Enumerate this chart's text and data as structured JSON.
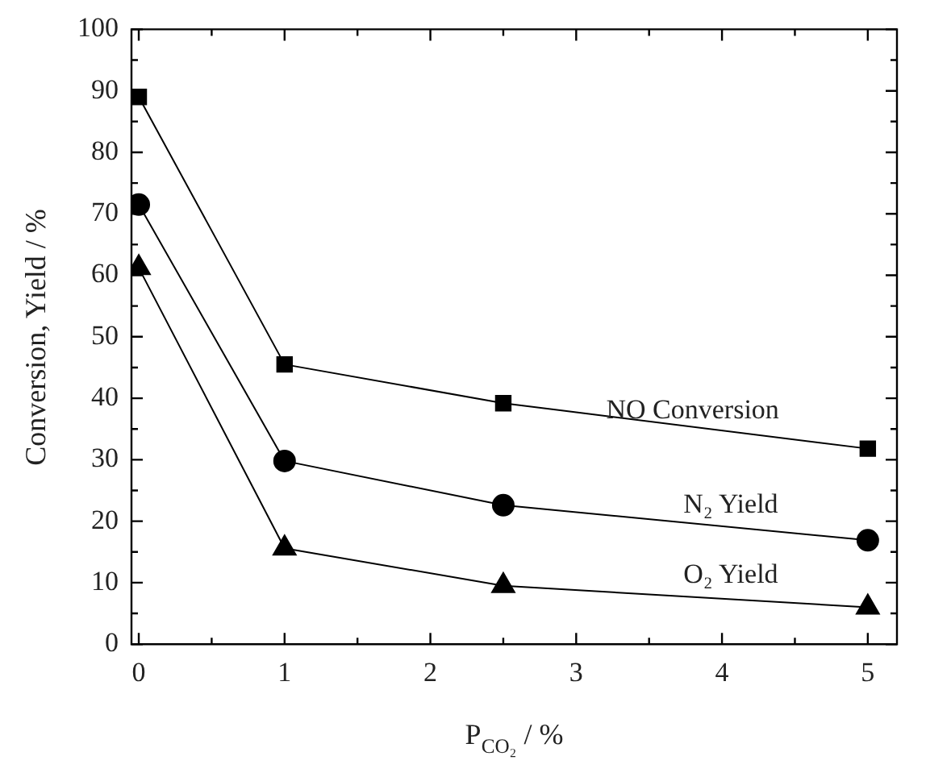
{
  "chart_data": {
    "type": "line",
    "xlabel": "P$_{CO₂}$ / %",
    "ylabel": "Conversion, Yield / %",
    "x": [
      0,
      1,
      2.5,
      5
    ],
    "series": [
      {
        "name": "NO Conversion",
        "color": "#000000",
        "marker": "square",
        "values": [
          89,
          45.5,
          39.2,
          31.8
        ]
      },
      {
        "name": "N₂ Yield",
        "color": "#000000",
        "marker": "circle",
        "values": [
          71.5,
          29.8,
          22.6,
          16.9
        ]
      },
      {
        "name": "O₂ Yield",
        "color": "#000000",
        "marker": "triangle",
        "values": [
          61.2,
          15.6,
          9.5,
          6
        ]
      }
    ],
    "xlim": [
      -0.05,
      5.2
    ],
    "xticks": [
      0,
      {
        "value": 0.5,
        "label": null
      },
      1,
      {
        "value": 1.5,
        "label": null
      },
      2,
      {
        "value": 2.5,
        "label": null
      },
      3,
      {
        "value": 3.5,
        "label": null
      },
      4,
      {
        "value": 4.5,
        "label": null
      },
      5
    ],
    "ylim": [
      0,
      100
    ],
    "yticks": [
      0,
      {
        "value": 5,
        "label": null
      },
      10,
      {
        "value": 15,
        "label": null
      },
      20,
      {
        "value": 25,
        "label": null
      },
      30,
      {
        "value": 35,
        "label": null
      },
      40,
      {
        "value": 45,
        "label": null
      },
      50,
      {
        "value": 55,
        "label": null
      },
      60,
      {
        "value": 65,
        "label": null
      },
      70,
      {
        "value": 75,
        "label": null
      },
      80,
      {
        "value": 85,
        "label": null
      },
      90,
      {
        "value": 95,
        "label": null
      },
      100
    ],
    "grid": false,
    "legend": "right",
    "line_style": "solid"
  }
}
